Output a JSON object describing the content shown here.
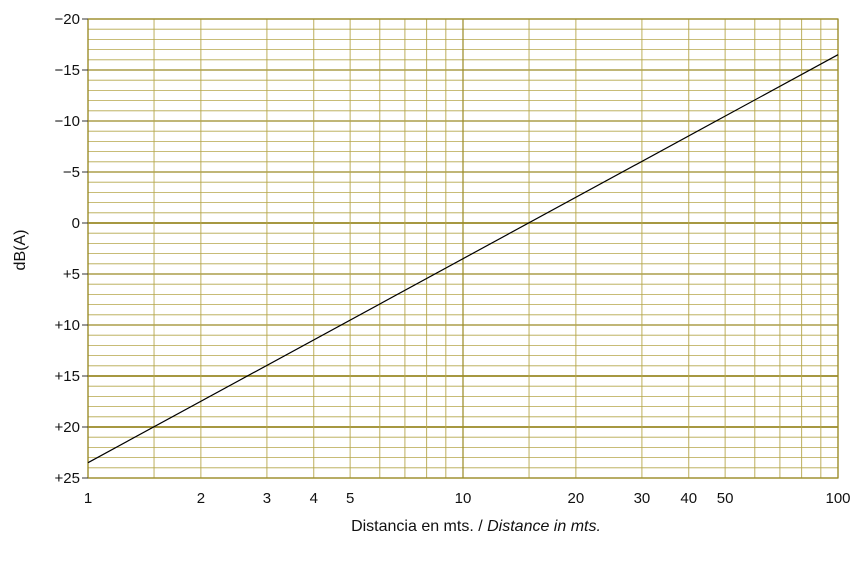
{
  "chart_data": {
    "type": "line",
    "xscale": "log",
    "xlim": [
      1,
      100
    ],
    "ylim": [
      -20,
      25
    ],
    "y_inverted": true,
    "grid": true,
    "xticks": [
      {
        "value": 1,
        "label": "1"
      },
      {
        "value": 2,
        "label": "2"
      },
      {
        "value": 3,
        "label": "3"
      },
      {
        "value": 4,
        "label": "4"
      },
      {
        "value": 5,
        "label": "5"
      },
      {
        "value": 10,
        "label": "10"
      },
      {
        "value": 20,
        "label": "20"
      },
      {
        "value": 30,
        "label": "30"
      },
      {
        "value": 40,
        "label": "40"
      },
      {
        "value": 50,
        "label": "50"
      },
      {
        "value": 100,
        "label": "100"
      }
    ],
    "yticks": [
      {
        "value": -20,
        "label": "−20"
      },
      {
        "value": -15,
        "label": "−15"
      },
      {
        "value": -10,
        "label": "−10"
      },
      {
        "value": -5,
        "label": "−5"
      },
      {
        "value": 0,
        "label": "0"
      },
      {
        "value": 5,
        "label": "+5"
      },
      {
        "value": 10,
        "label": "+10"
      },
      {
        "value": 15,
        "label": "+15"
      },
      {
        "value": 20,
        "label": "+20"
      },
      {
        "value": 25,
        "label": "+25"
      }
    ],
    "ylabel": "dB(A)",
    "xlabel_main": "Distancia en mts. / ",
    "xlabel_italic": "Distance in mts.",
    "series": [
      {
        "x": [
          1,
          100
        ],
        "y": [
          23.5,
          -16.5
        ]
      }
    ],
    "colors": {
      "grid": "#b5a64a",
      "grid_major": "#9a8a26",
      "line": "#000000"
    }
  }
}
